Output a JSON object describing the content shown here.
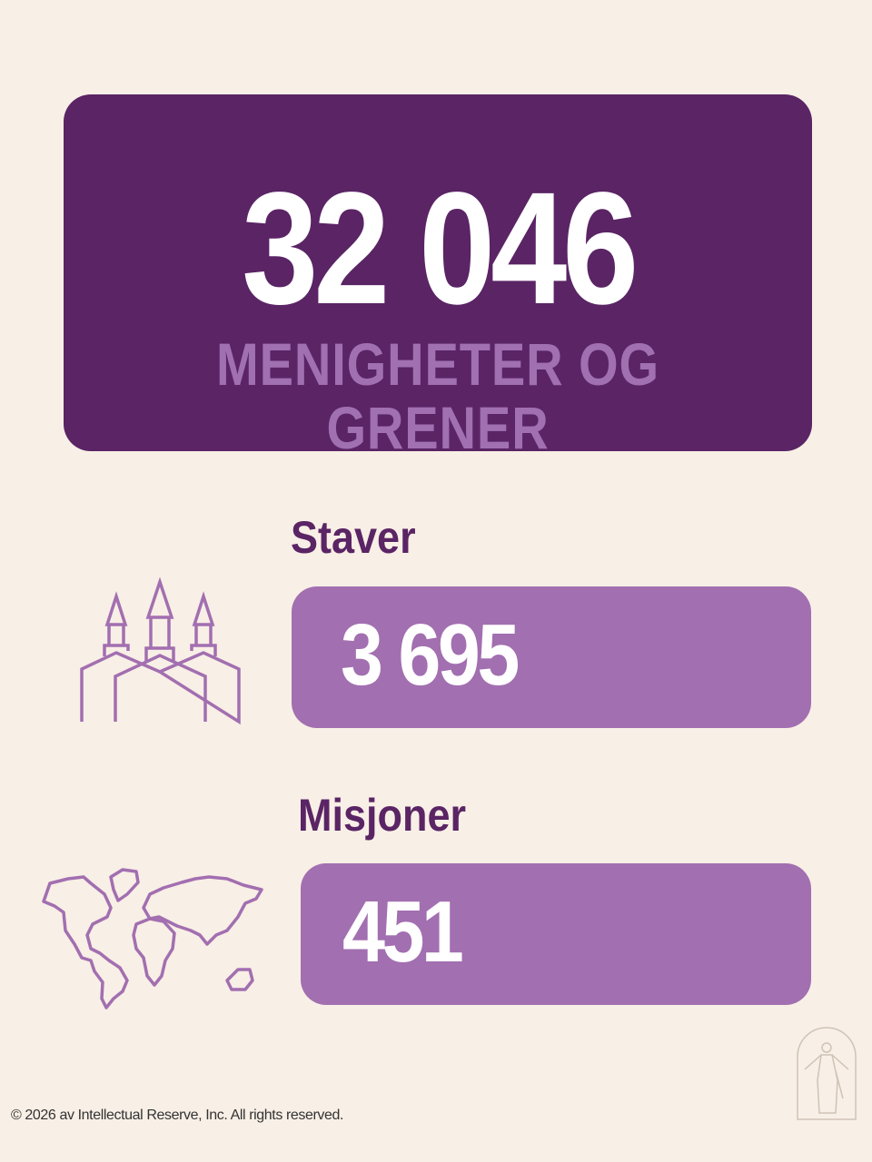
{
  "colors": {
    "background": "#f8efe6",
    "primary": "#5a2465",
    "accent": "#a26fb0",
    "label": "#a070b0"
  },
  "hero": {
    "value": "32 046",
    "label": "MENIGHETER OG GRENER"
  },
  "stats": [
    {
      "heading": "Staver",
      "value": "3 695",
      "icon": "temple-icon"
    },
    {
      "heading": "Misjoner",
      "value": "451",
      "icon": "world-map-icon"
    }
  ],
  "footer": {
    "copyright": "© 2026 av Intellectual Reserve, Inc. All rights reserved."
  },
  "logo": {
    "icon": "christus-statue-logo"
  }
}
